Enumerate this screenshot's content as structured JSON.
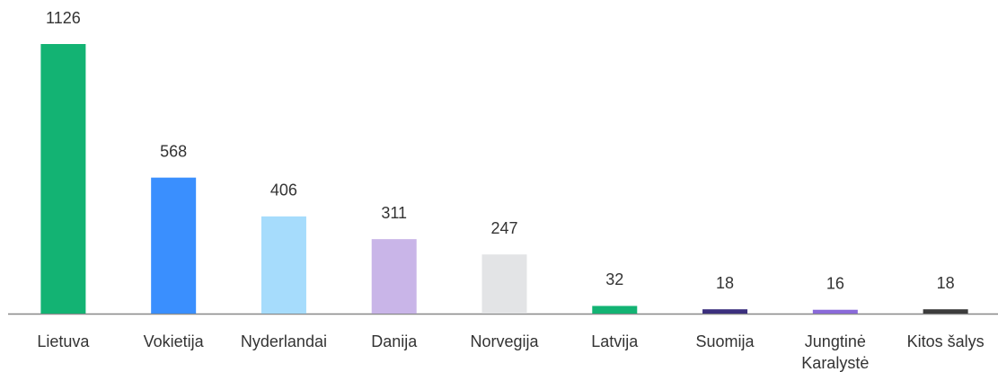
{
  "chart_data": {
    "type": "bar",
    "categories": [
      "Lietuva",
      "Vokietija",
      "Nyderlandai",
      "Danija",
      "Norvegija",
      "Latvija",
      "Suomija",
      "Jungtinė Karalystė",
      "Kitos šalys"
    ],
    "values": [
      1126,
      568,
      406,
      311,
      247,
      32,
      18,
      16,
      18
    ],
    "colors": [
      "#13b373",
      "#3a8ffe",
      "#a6dcfc",
      "#c9b5e8",
      "#e3e4e6",
      "#13b373",
      "#3b2f7d",
      "#8a6ad9",
      "#3c3c3c"
    ]
  }
}
